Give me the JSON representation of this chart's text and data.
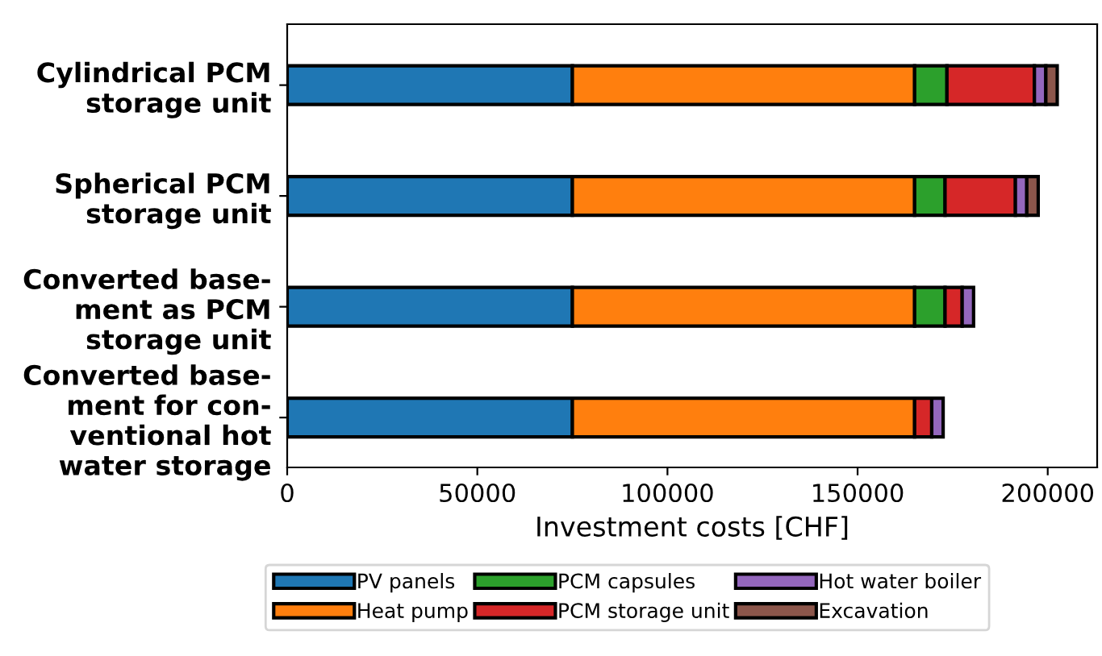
{
  "chart_data": {
    "type": "bar",
    "orientation": "horizontal",
    "stacked": true,
    "xlabel": "Investment costs [CHF]",
    "categories": [
      "Cylindrical PCM\nstorage unit",
      "Spherical PCM\nstorage unit",
      "Converted base-\nment as PCM\nstorage unit",
      "Converted base-\nment for con-\nventional hot\nwater storage"
    ],
    "series": [
      {
        "name": "PV panels",
        "color": "#1f77b4",
        "values": [
          75000,
          75000,
          75000,
          75000
        ]
      },
      {
        "name": "Heat pump",
        "color": "#ff7f0e",
        "values": [
          90000,
          90000,
          90000,
          90000
        ]
      },
      {
        "name": "PCM capsules",
        "color": "#2ca02c",
        "values": [
          8500,
          8000,
          8000,
          0
        ]
      },
      {
        "name": "PCM storage unit",
        "color": "#d62728",
        "values": [
          23000,
          18500,
          4500,
          4500
        ]
      },
      {
        "name": "Hot water boiler",
        "color": "#9467bd",
        "values": [
          3000,
          3000,
          3000,
          3000
        ]
      },
      {
        "name": "Excavation",
        "color": "#8c564b",
        "values": [
          3000,
          3000,
          0,
          0
        ]
      }
    ],
    "xlim": [
      0,
      213000
    ],
    "xticks": [
      0,
      50000,
      100000,
      150000,
      200000
    ],
    "legend": "bottom",
    "grid": false
  }
}
